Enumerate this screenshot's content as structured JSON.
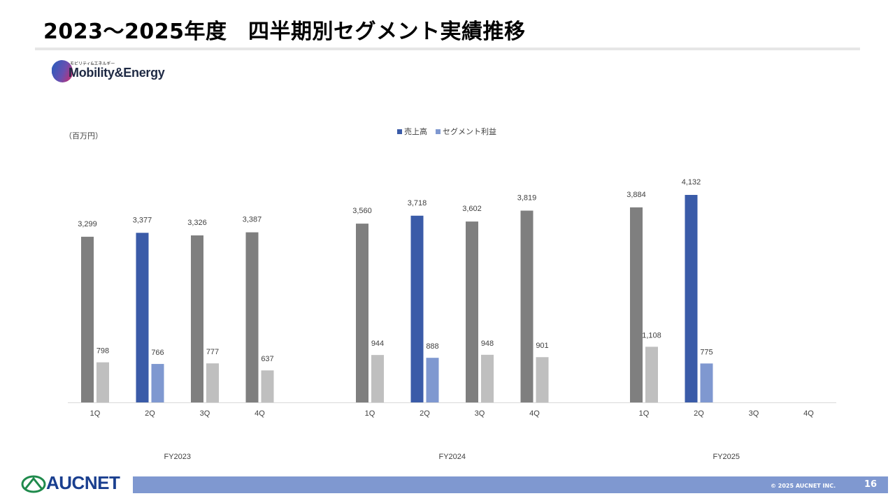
{
  "page": {
    "title": "2023〜2025年度　四半期別セグメント実績推移",
    "brand_small": "モビリティ&エネルギー",
    "brand_name": "Mobility&Energy",
    "footer_logo": "AUCNET",
    "copyright": "© 2025 AUCNET INC.",
    "page_number": "16"
  },
  "colors": {
    "sales": "#7f7f7f",
    "sales_highlight": "#3a5ba8",
    "profit": "#bfbfbf",
    "profit_highlight": "#7f98d0",
    "axis": "#d9d9d9",
    "label": "#404040"
  },
  "chart_data": {
    "type": "bar",
    "unit_label": "（百万円）",
    "legend": [
      "売上高",
      "セグメント利益"
    ],
    "legend_placement": "top-center",
    "groups": [
      {
        "label": "FY2023",
        "quarters": [
          "1Q",
          "2Q",
          "3Q",
          "4Q"
        ],
        "sales": [
          3299,
          3377,
          3326,
          3387
        ],
        "profit": [
          798,
          766,
          777,
          637
        ],
        "sales_labels": [
          "3,299",
          "3,377",
          "3,326",
          "3,387"
        ],
        "profit_labels": [
          "798",
          "766",
          "777",
          "637"
        ]
      },
      {
        "label": "FY2024",
        "quarters": [
          "1Q",
          "2Q",
          "3Q",
          "4Q"
        ],
        "sales": [
          3560,
          3718,
          3602,
          3819
        ],
        "profit": [
          944,
          888,
          948,
          901
        ],
        "sales_labels": [
          "3,560",
          "3,718",
          "3,602",
          "3,819"
        ],
        "profit_labels": [
          "944",
          "888",
          "948",
          "901"
        ]
      },
      {
        "label": "FY2025",
        "quarters": [
          "1Q",
          "2Q",
          "3Q",
          "4Q"
        ],
        "sales": [
          3884,
          4132,
          null,
          null
        ],
        "profit": [
          1108,
          775,
          null,
          null
        ],
        "sales_labels": [
          "3,884",
          "4,132",
          "",
          ""
        ],
        "profit_labels": [
          "1,108",
          "775",
          "",
          ""
        ]
      }
    ],
    "highlight_quarter": "2Q",
    "ylim": [
      0,
      4500
    ],
    "grid": false
  }
}
